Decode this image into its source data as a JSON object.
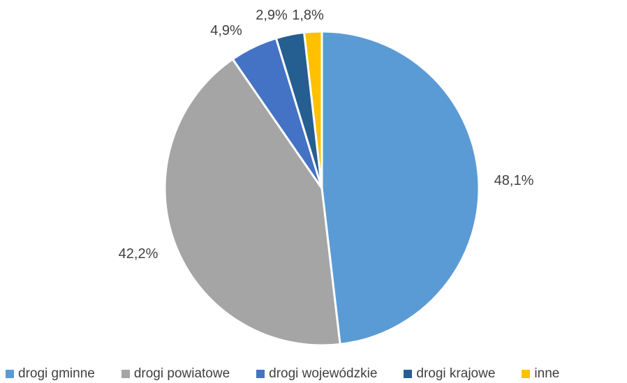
{
  "chart_data": {
    "type": "pie",
    "title": "",
    "start_angle_deg": 0,
    "direction": "clockwise",
    "legend_position": "bottom",
    "slices": [
      {
        "label": "drogi gminne",
        "value": 48.1,
        "display": "48,1%",
        "color": "#5B9BD5"
      },
      {
        "label": "drogi powiatowe",
        "value": 42.2,
        "display": "42,2%",
        "color": "#A5A5A5"
      },
      {
        "label": "drogi wojewódzkie",
        "value": 4.9,
        "display": "4,9%",
        "color": "#4472C4"
      },
      {
        "label": "drogi krajowe",
        "value": 2.9,
        "display": "2,9%",
        "color": "#255E91"
      },
      {
        "label": "inne",
        "value": 1.8,
        "display": "1,8%",
        "color": "#FFC000"
      }
    ]
  }
}
